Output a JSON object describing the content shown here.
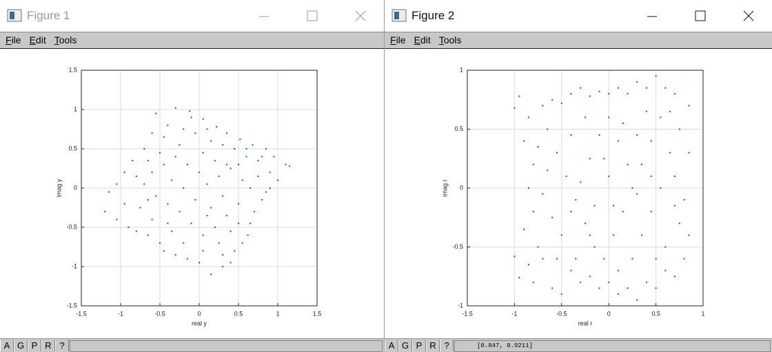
{
  "windows": [
    {
      "title": "Figure 1",
      "menu": [
        "File",
        "Edit",
        "Tools"
      ],
      "status_buttons": [
        "A",
        "G",
        "P",
        "R",
        "?"
      ]
    },
    {
      "title": "Figure 2",
      "menu": [
        "File",
        "Edit",
        "Tools"
      ],
      "status_buttons": [
        "A",
        "G",
        "P",
        "R",
        "?"
      ],
      "status_text": "[0.847, 0.9211]"
    }
  ],
  "chart_data": [
    {
      "type": "scatter",
      "x_label": "real y",
      "y_label": "imag y",
      "color": "#0063a6",
      "grid": true,
      "xlim": [
        -1.5,
        1.5
      ],
      "xticks": [
        -1.5,
        -1,
        -0.5,
        0,
        0.5,
        1,
        1.5
      ],
      "ylim": [
        -1.5,
        1.5
      ],
      "yticks": [
        -1.5,
        -1,
        -0.5,
        0,
        0.5,
        1,
        1.5
      ],
      "x": [
        -0.55,
        -0.3,
        -0.12,
        0.05,
        0.22,
        0.35,
        0.52,
        0.68,
        0.85,
        0.95,
        1.1,
        1.15,
        1.0,
        0.9,
        0.75,
        0.6,
        0.45,
        0.3,
        0.15,
        -0.05,
        -0.2,
        -0.4,
        -0.6,
        -0.7,
        -0.85,
        -0.95,
        -1.05,
        -1.15,
        -1.2,
        -1.05,
        -0.9,
        -0.8,
        -0.65,
        -0.5,
        -0.45,
        -0.3,
        -0.15,
        0.0,
        0.15,
        0.3,
        0.4,
        0.45,
        0.55,
        0.62,
        0.65,
        0.7,
        0.8,
        0.9,
        0.5,
        0.35,
        0.2,
        0.05,
        -0.1,
        -0.25,
        -0.4,
        -0.55,
        -0.7,
        -0.6,
        -0.45,
        -0.3,
        -0.15,
        0.0,
        0.1,
        0.25,
        0.4,
        0.55,
        0.65,
        0.3,
        0.15,
        -0.05,
        -0.2,
        -0.35,
        -0.5,
        -0.25,
        0.05,
        0.2,
        0.35,
        0.5,
        -0.8,
        -0.95,
        -0.75,
        -0.6,
        -0.35,
        -0.2,
        0.05,
        0.25,
        0.4,
        0.5,
        0.1,
        -0.4,
        -0.65,
        0.75,
        0.85,
        0.6,
        0.8,
        -0.1,
        0.1,
        -0.45,
        -0.65,
        0.3
      ],
      "values": [
        0.95,
        1.02,
        0.98,
        0.88,
        0.78,
        0.7,
        0.62,
        0.55,
        0.5,
        0.4,
        0.3,
        0.28,
        0.1,
        0.2,
        0.35,
        0.4,
        0.5,
        0.55,
        0.6,
        0.7,
        0.75,
        0.8,
        0.7,
        0.5,
        0.35,
        0.2,
        0.05,
        -0.05,
        -0.3,
        -0.4,
        -0.5,
        -0.55,
        -0.6,
        -0.7,
        -0.8,
        -0.85,
        -0.9,
        -0.95,
        -1.1,
        -1.0,
        -0.95,
        -0.8,
        -0.7,
        -0.6,
        -0.45,
        -0.3,
        -0.15,
        0.0,
        -0.2,
        -0.35,
        -0.5,
        -0.6,
        -0.45,
        -0.3,
        -0.2,
        -0.1,
        0.05,
        0.2,
        0.3,
        0.4,
        0.3,
        0.2,
        0.05,
        0.15,
        0.25,
        0.1,
        0.0,
        -0.1,
        -0.25,
        -0.15,
        0.0,
        0.1,
        0.45,
        0.55,
        0.45,
        0.35,
        0.3,
        0.3,
        0.15,
        -0.2,
        -0.25,
        -0.4,
        -0.55,
        -0.7,
        -0.8,
        -0.7,
        -0.55,
        -0.45,
        -0.35,
        -0.45,
        -0.15,
        0.15,
        -0.05,
        0.5,
        0.4,
        0.9,
        0.75,
        0.65,
        0.35,
        -0.85
      ]
    },
    {
      "type": "scatter",
      "x_label": "real r",
      "y_label": "imag r",
      "color": "#0063a6",
      "grid": true,
      "xlim": [
        -1.5,
        1
      ],
      "xticks": [
        -1.5,
        -1,
        -0.5,
        0,
        0.5,
        1
      ],
      "ylim": [
        -1,
        1
      ],
      "yticks": [
        -1,
        -0.5,
        0,
        0.5,
        1
      ],
      "x": [
        -1.0,
        -0.95,
        -0.85,
        -0.9,
        -0.8,
        -0.85,
        -0.8,
        -0.9,
        -0.75,
        -1.0,
        -0.95,
        -0.8,
        -0.7,
        -0.6,
        -0.5,
        -0.4,
        -0.3,
        -0.2,
        -0.1,
        0.0,
        0.1,
        0.2,
        0.3,
        0.4,
        0.5,
        0.6,
        0.7,
        0.8,
        0.85,
        0.75,
        0.8,
        0.7,
        0.85,
        0.75,
        0.85,
        0.7,
        0.6,
        0.5,
        0.4,
        0.3,
        0.2,
        0.1,
        0.0,
        -0.1,
        -0.2,
        -0.3,
        -0.4,
        -0.5,
        -0.6,
        -0.7,
        -0.65,
        -0.55,
        -0.45,
        -0.35,
        -0.25,
        -0.15,
        -0.05,
        0.05,
        0.15,
        0.25,
        0.35,
        0.45,
        0.55,
        0.65,
        0.55,
        0.45,
        0.35,
        0.25,
        -0.5,
        -0.4,
        -0.3,
        -0.2,
        -0.1,
        0.0,
        0.1,
        0.2,
        0.3,
        0.4,
        -0.6,
        -0.7,
        -0.65,
        0.6,
        0.5,
        -0.2,
        0.0,
        -0.4,
        -0.75,
        0.7,
        -0.55,
        0.15,
        -0.25,
        0.65,
        -0.85,
        0.1,
        -0.05,
        0.45,
        -0.35,
        0.3,
        -0.15,
        0.05
      ],
      "values": [
        0.68,
        0.78,
        0.6,
        0.4,
        0.2,
        0.0,
        -0.2,
        -0.35,
        -0.5,
        -0.58,
        -0.76,
        -0.8,
        -0.6,
        -0.85,
        -0.9,
        -0.7,
        -0.8,
        -0.75,
        -0.85,
        -0.8,
        -0.9,
        -0.85,
        -0.95,
        -0.8,
        -0.85,
        -0.7,
        -0.75,
        -0.6,
        -0.4,
        -0.3,
        -0.1,
        0.1,
        0.3,
        0.5,
        0.7,
        0.8,
        0.85,
        0.95,
        0.85,
        0.9,
        0.8,
        0.85,
        0.8,
        0.82,
        0.78,
        0.85,
        0.8,
        0.72,
        0.75,
        0.7,
        0.5,
        0.3,
        0.1,
        -0.1,
        -0.3,
        -0.5,
        -0.6,
        -0.4,
        -0.2,
        0.0,
        0.2,
        0.4,
        0.6,
        0.3,
        0.0,
        -0.2,
        -0.4,
        -0.6,
        -0.4,
        -0.2,
        0.05,
        0.25,
        0.45,
        0.6,
        0.4,
        0.2,
        -0.05,
        0.65,
        -0.25,
        -0.05,
        0.15,
        -0.5,
        -0.6,
        -0.4,
        0.1,
        0.45,
        0.35,
        -0.15,
        -0.6,
        0.55,
        0.6,
        0.65,
        -0.65,
        -0.7,
        0.25,
        0.1,
        -0.6,
        0.45,
        -0.15,
        -0.15
      ]
    }
  ]
}
